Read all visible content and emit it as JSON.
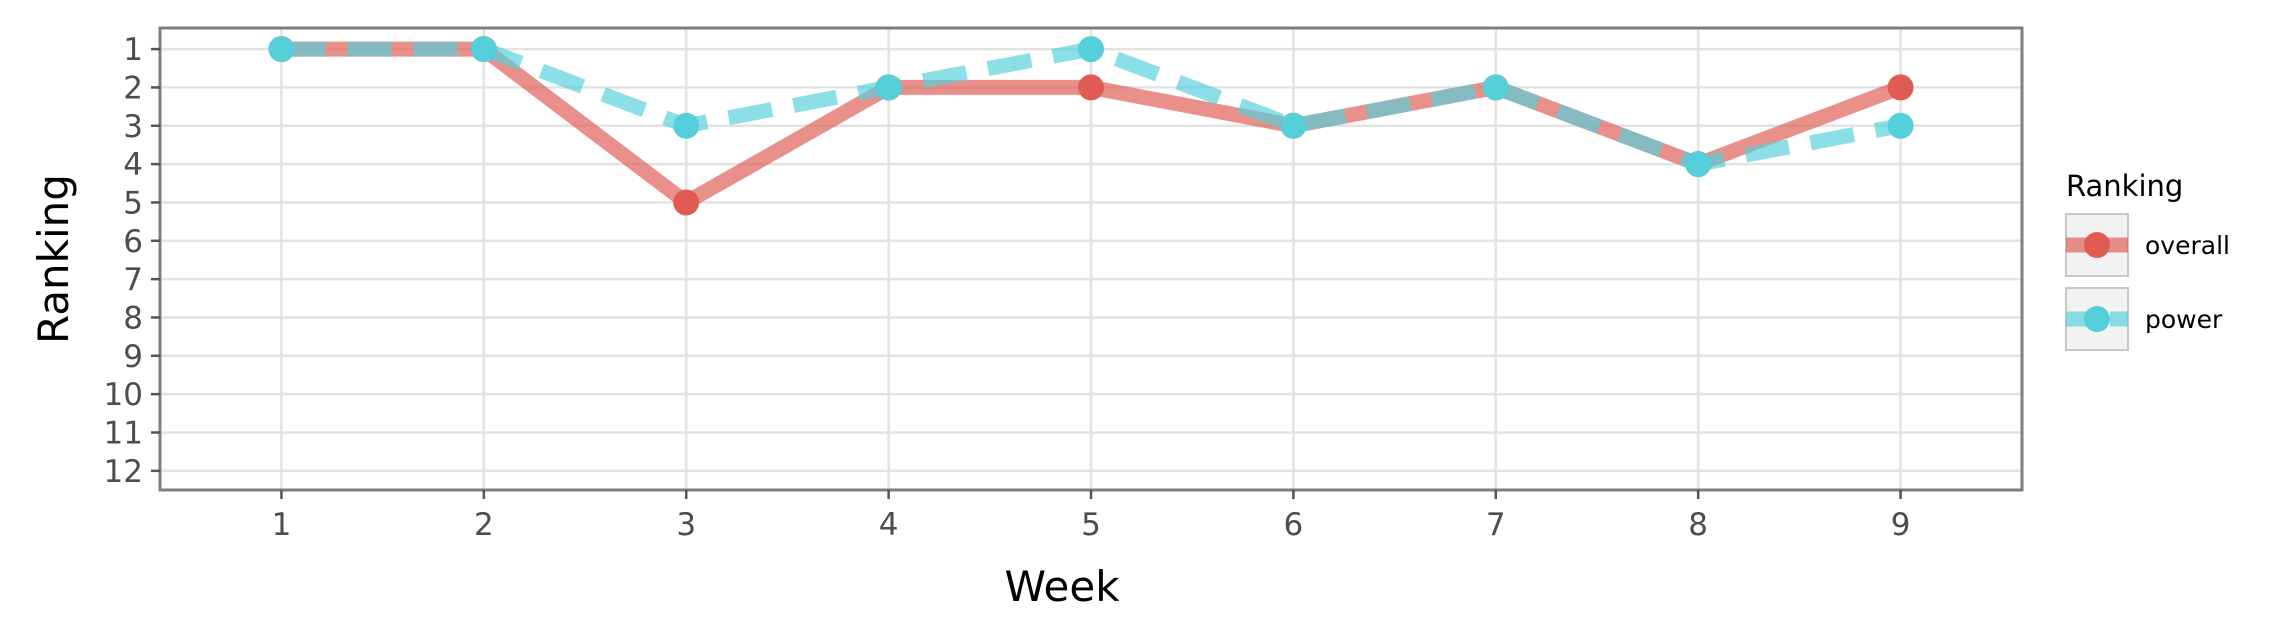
{
  "chart_data": {
    "type": "line",
    "xlabel": "Week",
    "ylabel": "Ranking",
    "x": [
      1,
      2,
      3,
      4,
      5,
      6,
      7,
      8,
      9
    ],
    "x_ticks": [
      "1",
      "2",
      "3",
      "4",
      "5",
      "6",
      "7",
      "8",
      "9"
    ],
    "y_ticks": [
      "1",
      "2",
      "3",
      "4",
      "5",
      "6",
      "7",
      "8",
      "9",
      "10",
      "11",
      "12"
    ],
    "xlim": [
      0.4,
      9.6
    ],
    "ylim": [
      12.5,
      0.45
    ],
    "y_reversed": true,
    "grid": true,
    "legend": {
      "title": "Ranking",
      "position": "right"
    },
    "series": [
      {
        "name": "overall",
        "values": [
          1,
          1,
          5,
          2,
          2,
          3,
          2,
          4,
          2
        ],
        "color": "#E05C52",
        "line_style": "solid"
      },
      {
        "name": "power",
        "values": [
          1,
          1,
          3,
          2,
          1,
          3,
          2,
          4,
          3
        ],
        "color": "#55D0DB",
        "line_style": "dashed"
      }
    ]
  }
}
